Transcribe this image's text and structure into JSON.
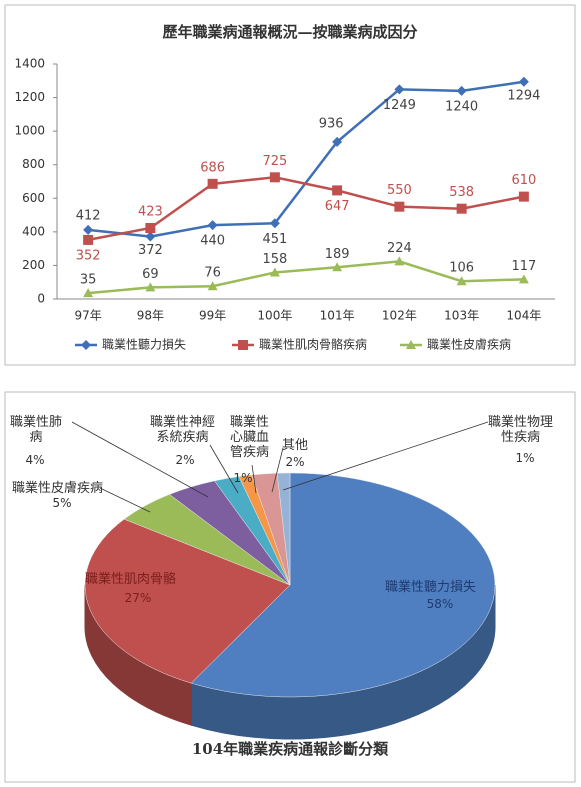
{
  "chart_data": [
    {
      "type": "line",
      "title": "歷年職業病通報概況—按職業病成因分",
      "categories": [
        "97年",
        "98年",
        "99年",
        "100年",
        "101年",
        "102年",
        "103年",
        "104年"
      ],
      "series": [
        {
          "name": "職業性聽力損失",
          "color": "#3f6fb6",
          "marker": "diamond",
          "values": [
            412,
            372,
            440,
            451,
            936,
            1249,
            1240,
            1294
          ]
        },
        {
          "name": "職業性肌肉骨骼疾病",
          "color": "#c0504d",
          "marker": "square",
          "values": [
            352,
            423,
            686,
            725,
            647,
            550,
            538,
            610
          ]
        },
        {
          "name": "職業性皮膚疾病",
          "color": "#9bbb59",
          "marker": "triangle",
          "values": [
            35,
            69,
            76,
            158,
            189,
            224,
            106,
            117
          ]
        }
      ],
      "ylim": [
        0,
        1400
      ],
      "yticks": [
        0,
        200,
        400,
        600,
        800,
        1000,
        1200,
        1400
      ],
      "grid": false,
      "legend": "bottom"
    },
    {
      "type": "pie",
      "title": "104年職業疾病通報診斷分類",
      "categories": [
        "職業性聽力損失",
        "職業性肌肉骨骼",
        "職業性皮膚疾病",
        "職業性肺病",
        "職業性神經系統疾病",
        "職業性心臟血管疾病",
        "其他",
        "職業性物理性疾病"
      ],
      "values": [
        58,
        27,
        5,
        4,
        2,
        1,
        2,
        1
      ],
      "value_labels": [
        "58%",
        "27%",
        "5%",
        "4%",
        "2%",
        "1%",
        "2%",
        "1%"
      ],
      "colors": [
        "#4f7fc0",
        "#c0504d",
        "#9bbb59",
        "#7d5fa0",
        "#4bacc6",
        "#f79646",
        "#d99694",
        "#95b3d7"
      ]
    }
  ]
}
